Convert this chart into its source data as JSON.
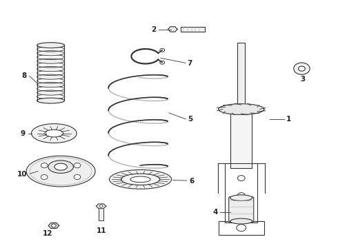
{
  "background_color": "#ffffff",
  "line_color": "#333333",
  "figsize": [
    4.9,
    3.6
  ],
  "dpi": 100
}
